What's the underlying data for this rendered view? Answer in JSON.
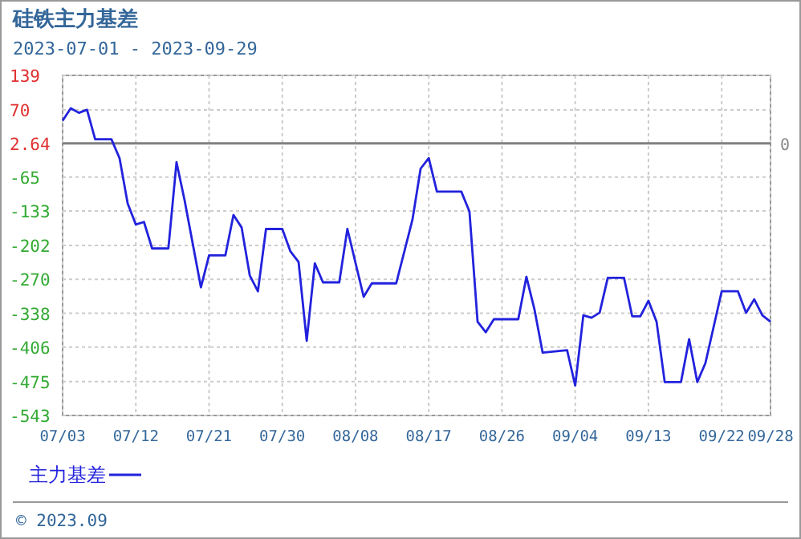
{
  "chart_data": {
    "type": "line",
    "title": "硅铁主力基差",
    "subtitle": "2023-07-01 - 2023-09-29",
    "x": [
      "2023-07-03",
      "2023-07-04",
      "2023-07-05",
      "2023-07-06",
      "2023-07-07",
      "2023-07-09",
      "2023-07-10",
      "2023-07-11",
      "2023-07-12",
      "2023-07-13",
      "2023-07-14",
      "2023-07-16",
      "2023-07-17",
      "2023-07-18",
      "2023-07-20",
      "2023-07-21",
      "2023-07-23",
      "2023-07-24",
      "2023-07-25",
      "2023-07-26",
      "2023-07-27",
      "2023-07-28",
      "2023-07-30",
      "2023-07-31",
      "2023-08-01",
      "2023-08-02",
      "2023-08-03",
      "2023-08-04",
      "2023-08-06",
      "2023-08-07",
      "2023-08-09",
      "2023-08-10",
      "2023-08-13",
      "2023-08-15",
      "2023-08-16",
      "2023-08-17",
      "2023-08-18",
      "2023-08-21",
      "2023-08-22",
      "2023-08-23",
      "2023-08-24",
      "2023-08-25",
      "2023-08-28",
      "2023-08-29",
      "2023-08-30",
      "2023-08-31",
      "2023-09-03",
      "2023-09-04",
      "2023-09-05",
      "2023-09-06",
      "2023-09-07",
      "2023-09-08",
      "2023-09-10",
      "2023-09-11",
      "2023-09-12",
      "2023-09-13",
      "2023-09-14",
      "2023-09-15",
      "2023-09-17",
      "2023-09-18",
      "2023-09-19",
      "2023-09-20",
      "2023-09-22",
      "2023-09-24",
      "2023-09-25",
      "2023-09-26",
      "2023-09-27",
      "2023-09-28"
    ],
    "series": [
      {
        "name": "主力基差",
        "color": "#2222dd",
        "values": [
          48,
          73,
          64,
          70,
          11,
          11,
          -27,
          -118,
          -160,
          -155,
          -208,
          -208,
          -35,
          -112,
          -286,
          -222,
          -222,
          -141,
          -166,
          -262,
          -294,
          -169,
          -169,
          -214,
          -235,
          -393,
          -238,
          -276,
          -276,
          -169,
          -305,
          -278,
          -278,
          -150,
          -48,
          -27,
          -94,
          -94,
          -134,
          -355,
          -376,
          -350,
          -350,
          -265,
          -331,
          -417,
          -412,
          -483,
          -342,
          -347,
          -337,
          -267,
          -267,
          -344,
          -344,
          -313,
          -355,
          -476,
          -476,
          -390,
          -476,
          -438,
          -294,
          -294,
          -337,
          -310,
          -342,
          -355
        ]
      }
    ],
    "xlim": [
      "2023-07-03",
      "2023-09-28"
    ],
    "xticks": [
      {
        "value": "2023-07-03",
        "label": "07/03"
      },
      {
        "value": "2023-07-12",
        "label": "07/12"
      },
      {
        "value": "2023-07-21",
        "label": "07/21"
      },
      {
        "value": "2023-07-30",
        "label": "07/30"
      },
      {
        "value": "2023-08-08",
        "label": "08/08"
      },
      {
        "value": "2023-08-17",
        "label": "08/17"
      },
      {
        "value": "2023-08-26",
        "label": "08/26"
      },
      {
        "value": "2023-09-04",
        "label": "09/04"
      },
      {
        "value": "2023-09-13",
        "label": "09/13"
      },
      {
        "value": "2023-09-22",
        "label": "09/22"
      },
      {
        "value": "2023-09-28",
        "label": "09/28"
      }
    ],
    "ylim": [
      -543,
      139
    ],
    "yticks": [
      139,
      70,
      2.64,
      -65,
      -133,
      -202,
      -270,
      -338,
      -406,
      -475,
      -543
    ],
    "ref_lines": [
      {
        "axis": "y",
        "value": 2.64,
        "color": "#808080"
      }
    ],
    "grid": true,
    "legend": "bottom left",
    "marker": "none",
    "line_style": "solid",
    "annotations": [
      "0",
      "© 2023.09"
    ]
  }
}
